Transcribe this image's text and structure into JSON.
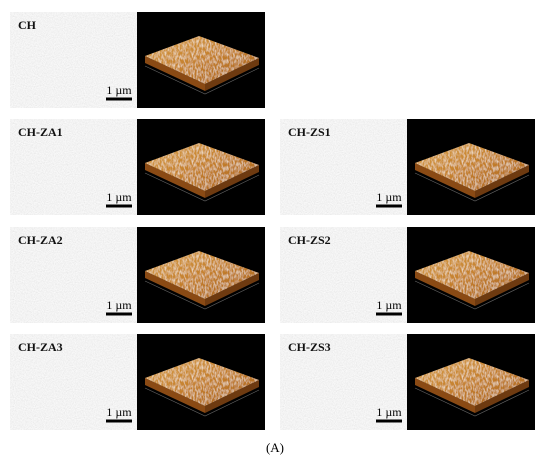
{
  "panels": [
    {
      "label": "CH",
      "scale": "1 µm"
    },
    {
      "label": "CH-ZA1",
      "scale": "1 µm"
    },
    {
      "label": "CH-ZS1",
      "scale": "1 µm"
    },
    {
      "label": "CH-ZA2",
      "scale": "1 µm"
    },
    {
      "label": "CH-ZS2",
      "scale": "1 µm"
    },
    {
      "label": "CH-ZA3",
      "scale": "1 µm"
    },
    {
      "label": "CH-ZS3",
      "scale": "1 µm"
    }
  ],
  "caption": "(A)"
}
